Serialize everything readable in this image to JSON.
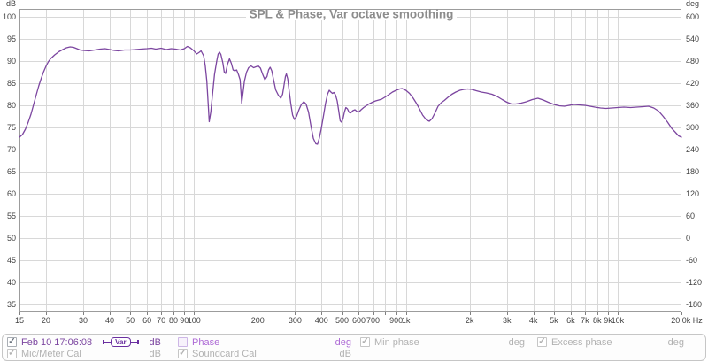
{
  "chart_data": {
    "type": "line",
    "title": "SPL & Phase, Var octave smoothing",
    "x_axis": {
      "scale": "log",
      "min_hz": 15,
      "max_hz": 20000,
      "ticks": [
        {
          "f": 15,
          "t": "15"
        },
        {
          "f": 20,
          "t": "20"
        },
        {
          "f": 30,
          "t": "30"
        },
        {
          "f": 40,
          "t": "40"
        },
        {
          "f": 50,
          "t": "50"
        },
        {
          "f": 60,
          "t": "60"
        },
        {
          "f": 70,
          "t": "70"
        },
        {
          "f": 80,
          "t": "80"
        },
        {
          "f": 90,
          "t": "90"
        },
        {
          "f": 100,
          "t": "100"
        },
        {
          "f": 200,
          "t": "200"
        },
        {
          "f": 300,
          "t": "300"
        },
        {
          "f": 400,
          "t": "400"
        },
        {
          "f": 500,
          "t": "500"
        },
        {
          "f": 600,
          "t": "600"
        },
        {
          "f": 700,
          "t": "700"
        },
        {
          "f": 900,
          "t": "900"
        },
        {
          "f": 1000,
          "t": "1k"
        },
        {
          "f": 2000,
          "t": "2k"
        },
        {
          "f": 3000,
          "t": "3k"
        },
        {
          "f": 4000,
          "t": "4k"
        },
        {
          "f": 5000,
          "t": "5k"
        },
        {
          "f": 6000,
          "t": "6k"
        },
        {
          "f": 7000,
          "t": "7k"
        },
        {
          "f": 8000,
          "t": "8k"
        },
        {
          "f": 9000,
          "t": "9k"
        },
        {
          "f": 10000,
          "t": "10k"
        },
        {
          "f": 20000,
          "t": "20,0k Hz"
        }
      ]
    },
    "y_left": {
      "unit": "dB",
      "min": 35,
      "max": 100,
      "step": 5
    },
    "y_right": {
      "unit": "deg",
      "min": -180,
      "max": 600,
      "step": 60
    },
    "grid": true,
    "colors": {
      "grid": "#d8d8d8",
      "frame": "#9c9c9c",
      "tick_text": "#3f3f3f"
    },
    "series": [
      {
        "name": "Feb 10 17:06:08",
        "smoothing": "Var",
        "unit": "dB",
        "color": "#7c46a0",
        "points": [
          [
            15,
            72.8
          ],
          [
            15.5,
            73.4
          ],
          [
            16,
            74.6
          ],
          [
            16.5,
            76.2
          ],
          [
            17,
            78.0
          ],
          [
            17.5,
            80.2
          ],
          [
            18,
            82.4
          ],
          [
            18.5,
            84.4
          ],
          [
            19,
            86.1
          ],
          [
            19.5,
            87.6
          ],
          [
            20,
            88.8
          ],
          [
            20.5,
            89.8
          ],
          [
            21,
            90.5
          ],
          [
            22,
            91.4
          ],
          [
            23,
            92.1
          ],
          [
            24,
            92.6
          ],
          [
            25,
            93.0
          ],
          [
            26,
            93.2
          ],
          [
            27,
            93.1
          ],
          [
            28,
            92.8
          ],
          [
            29,
            92.5
          ],
          [
            30,
            92.4
          ],
          [
            32,
            92.3
          ],
          [
            34,
            92.5
          ],
          [
            36,
            92.7
          ],
          [
            38,
            92.8
          ],
          [
            40,
            92.6
          ],
          [
            42,
            92.4
          ],
          [
            44,
            92.3
          ],
          [
            47,
            92.5
          ],
          [
            50,
            92.5
          ],
          [
            53,
            92.6
          ],
          [
            56,
            92.7
          ],
          [
            60,
            92.8
          ],
          [
            63,
            92.9
          ],
          [
            66,
            92.7
          ],
          [
            70,
            92.9
          ],
          [
            74,
            92.6
          ],
          [
            78,
            92.8
          ],
          [
            82,
            92.7
          ],
          [
            86,
            92.5
          ],
          [
            90,
            92.8
          ],
          [
            93,
            93.3
          ],
          [
            96,
            93.0
          ],
          [
            100,
            92.3
          ],
          [
            103,
            91.6
          ],
          [
            106,
            92.0
          ],
          [
            108,
            92.3
          ],
          [
            111,
            91.2
          ],
          [
            113,
            89.0
          ],
          [
            115,
            85.5
          ],
          [
            117,
            79.5
          ],
          [
            118,
            76.3
          ],
          [
            120,
            78.5
          ],
          [
            122,
            82.0
          ],
          [
            125,
            87.0
          ],
          [
            128,
            90.0
          ],
          [
            130,
            91.6
          ],
          [
            132,
            92.0
          ],
          [
            134,
            91.5
          ],
          [
            137,
            89.5
          ],
          [
            139,
            87.5
          ],
          [
            141,
            87.2
          ],
          [
            144,
            89.3
          ],
          [
            147,
            90.5
          ],
          [
            150,
            89.5
          ],
          [
            153,
            88.0
          ],
          [
            156,
            87.8
          ],
          [
            159,
            88.0
          ],
          [
            162,
            87.0
          ],
          [
            165,
            85.8
          ],
          [
            167,
            82.5
          ],
          [
            168,
            80.5
          ],
          [
            170,
            82.5
          ],
          [
            173,
            85.5
          ],
          [
            177,
            87.5
          ],
          [
            181,
            88.5
          ],
          [
            186,
            88.9
          ],
          [
            191,
            88.5
          ],
          [
            196,
            88.7
          ],
          [
            201,
            88.9
          ],
          [
            206,
            88.4
          ],
          [
            211,
            87.0
          ],
          [
            216,
            85.8
          ],
          [
            221,
            86.5
          ],
          [
            225,
            88.0
          ],
          [
            229,
            88.6
          ],
          [
            233,
            87.8
          ],
          [
            238,
            85.5
          ],
          [
            243,
            83.5
          ],
          [
            250,
            82.3
          ],
          [
            257,
            81.6
          ],
          [
            262,
            82.5
          ],
          [
            266,
            84.5
          ],
          [
            270,
            86.5
          ],
          [
            273,
            87.1
          ],
          [
            277,
            86.0
          ],
          [
            281,
            83.5
          ],
          [
            286,
            80.5
          ],
          [
            292,
            77.8
          ],
          [
            298,
            76.8
          ],
          [
            305,
            77.5
          ],
          [
            313,
            79.0
          ],
          [
            321,
            80.2
          ],
          [
            330,
            80.8
          ],
          [
            338,
            80.3
          ],
          [
            347,
            78.5
          ],
          [
            356,
            75.5
          ],
          [
            366,
            72.5
          ],
          [
            376,
            71.3
          ],
          [
            383,
            71.2
          ],
          [
            390,
            72.5
          ],
          [
            398,
            74.5
          ],
          [
            408,
            77.5
          ],
          [
            418,
            80.5
          ],
          [
            427,
            82.5
          ],
          [
            435,
            83.4
          ],
          [
            443,
            83.0
          ],
          [
            450,
            82.7
          ],
          [
            458,
            82.9
          ],
          [
            466,
            82.3
          ],
          [
            474,
            81.0
          ],
          [
            482,
            78.8
          ],
          [
            490,
            76.5
          ],
          [
            497,
            76.2
          ],
          [
            505,
            77.0
          ],
          [
            513,
            78.5
          ],
          [
            521,
            79.5
          ],
          [
            530,
            79.2
          ],
          [
            540,
            78.4
          ],
          [
            550,
            78.3
          ],
          [
            562,
            78.8
          ],
          [
            575,
            79.0
          ],
          [
            588,
            78.6
          ],
          [
            600,
            78.5
          ],
          [
            615,
            79.0
          ],
          [
            632,
            79.5
          ],
          [
            650,
            79.9
          ],
          [
            670,
            80.3
          ],
          [
            695,
            80.7
          ],
          [
            720,
            81.0
          ],
          [
            745,
            81.2
          ],
          [
            770,
            81.4
          ],
          [
            800,
            81.9
          ],
          [
            830,
            82.4
          ],
          [
            865,
            83.0
          ],
          [
            900,
            83.4
          ],
          [
            935,
            83.7
          ],
          [
            960,
            83.8
          ],
          [
            1000,
            83.4
          ],
          [
            1040,
            82.7
          ],
          [
            1080,
            81.7
          ],
          [
            1120,
            80.5
          ],
          [
            1160,
            79.2
          ],
          [
            1200,
            77.8
          ],
          [
            1250,
            76.7
          ],
          [
            1290,
            76.4
          ],
          [
            1330,
            77.0
          ],
          [
            1370,
            78.2
          ],
          [
            1420,
            79.8
          ],
          [
            1470,
            80.6
          ],
          [
            1520,
            81.1
          ],
          [
            1580,
            81.8
          ],
          [
            1650,
            82.5
          ],
          [
            1720,
            83.0
          ],
          [
            1800,
            83.4
          ],
          [
            1880,
            83.6
          ],
          [
            1960,
            83.7
          ],
          [
            2050,
            83.6
          ],
          [
            2150,
            83.3
          ],
          [
            2270,
            83.0
          ],
          [
            2400,
            82.8
          ],
          [
            2550,
            82.5
          ],
          [
            2700,
            82.0
          ],
          [
            2850,
            81.3
          ],
          [
            3000,
            80.7
          ],
          [
            3150,
            80.3
          ],
          [
            3300,
            80.3
          ],
          [
            3500,
            80.5
          ],
          [
            3700,
            80.8
          ],
          [
            3950,
            81.3
          ],
          [
            4200,
            81.6
          ],
          [
            4450,
            81.2
          ],
          [
            4700,
            80.7
          ],
          [
            5000,
            80.2
          ],
          [
            5300,
            79.9
          ],
          [
            5600,
            79.8
          ],
          [
            5900,
            80.0
          ],
          [
            6200,
            80.2
          ],
          [
            6600,
            80.1
          ],
          [
            7000,
            80.0
          ],
          [
            7400,
            79.8
          ],
          [
            7800,
            79.6
          ],
          [
            8300,
            79.4
          ],
          [
            8800,
            79.3
          ],
          [
            9400,
            79.4
          ],
          [
            10000,
            79.5
          ],
          [
            10700,
            79.6
          ],
          [
            11500,
            79.5
          ],
          [
            12300,
            79.6
          ],
          [
            13200,
            79.7
          ],
          [
            14000,
            79.8
          ],
          [
            14800,
            79.4
          ],
          [
            15600,
            78.7
          ],
          [
            16400,
            77.5
          ],
          [
            17200,
            76.2
          ],
          [
            18000,
            74.8
          ],
          [
            18800,
            73.8
          ],
          [
            19400,
            73.1
          ],
          [
            20000,
            72.8
          ]
        ]
      }
    ]
  },
  "axes_corner_labels": {
    "left": "dB",
    "right": "deg"
  },
  "legend": {
    "rows": [
      {
        "items": [
          {
            "label": "Feb 10 17:06:08",
            "badge": "Var",
            "unit": "dB",
            "checked": true,
            "color": "#7c46a0",
            "check_color": "#6d7680",
            "box_border": "#a9aeb4"
          },
          {
            "label": "Phase",
            "unit": "deg",
            "checked": false,
            "color": "#ae6bd6",
            "check_color": "",
            "box_border": "#cdb6e6"
          },
          {
            "label": "Min phase",
            "unit": "deg",
            "checked": true,
            "color": "#b2b2b2",
            "check_color": "#b2b2b2",
            "box_border": "#c6c6c6"
          },
          {
            "label": "Excess phase",
            "unit": "deg",
            "checked": true,
            "color": "#b2b2b2",
            "check_color": "#b2b2b2",
            "box_border": "#c6c6c6"
          }
        ]
      },
      {
        "items": [
          {
            "label": "Mic/Meter Cal",
            "unit": "dB",
            "checked": true,
            "color": "#b2b2b2",
            "check_color": "#b2b2b2",
            "box_border": "#c6c6c6"
          },
          {
            "label": "Soundcard Cal",
            "unit": "dB",
            "checked": true,
            "color": "#b2b2b2",
            "check_color": "#b2b2b2",
            "box_border": "#c6c6c6"
          }
        ]
      }
    ]
  }
}
